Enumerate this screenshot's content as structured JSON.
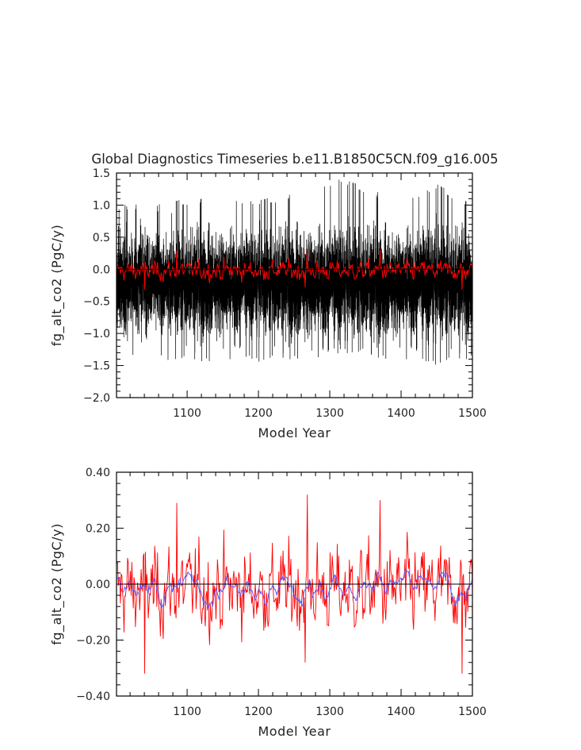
{
  "chart_data": [
    {
      "type": "line",
      "title": "Global Diagnostics Timeseries b.e11.B1850C5CN.f09_g16.005",
      "xlabel": "Model Year",
      "ylabel": "fg_alt_co2 (PgC/y)",
      "xlim": [
        1001,
        1500
      ],
      "ylim": [
        -2.0,
        1.5
      ],
      "xticks": [
        1100,
        1200,
        1300,
        1400,
        1500
      ],
      "xtick_labels": [
        "1100",
        "1200",
        "1300",
        "1400",
        "1500"
      ],
      "yticks": [
        -2.0,
        -1.5,
        -1.0,
        -0.5,
        0.0,
        0.5,
        1.0,
        1.5
      ],
      "ytick_labels": [
        "−2.0",
        "−1.5",
        "−1.0",
        "−0.5",
        "0.0",
        "0.5",
        "1.0",
        "1.5"
      ],
      "grid": false,
      "zero_line": true,
      "series": [
        {
          "color": "#000000",
          "style": "monthly",
          "values_note": "",
          "x_range": [
            1001,
            1500
          ],
          "envelope": [
            [
              1001,
              -1.35,
              1.0
            ],
            [
              1100,
              -1.45,
              1.1
            ],
            [
              1200,
              -1.45,
              1.1
            ],
            [
              1270,
              -1.4,
              1.2
            ],
            [
              1315,
              -1.3,
              1.45
            ],
            [
              1400,
              -1.45,
              1.05
            ],
            [
              1450,
              -1.5,
              1.35
            ],
            [
              1500,
              -1.4,
              1.0
            ]
          ]
        },
        {
          "color": "#ff0000",
          "style": "annual"
        }
      ]
    },
    {
      "type": "line",
      "title": "",
      "xlabel": "Model Year",
      "ylabel": "fg_alt_co2 (PgC/y)",
      "xlim": [
        1001,
        1500
      ],
      "ylim": [
        -0.4,
        0.4
      ],
      "xticks": [
        1100,
        1200,
        1300,
        1400,
        1500
      ],
      "xtick_labels": [
        "1100",
        "1200",
        "1300",
        "1400",
        "1500"
      ],
      "yticks": [
        -0.4,
        -0.2,
        0.0,
        0.2,
        0.4
      ],
      "ytick_labels": [
        "−0.40",
        "−0.20",
        "0.00",
        "0.20",
        "0.40"
      ],
      "grid": false,
      "zero_line": true,
      "series": [
        {
          "color": "#ff0000",
          "style": "annual",
          "peaks": [
            [
              1085,
              0.29
            ],
            [
              1268,
              0.32
            ],
            [
              1370,
              0.3
            ],
            [
              1040,
              -0.32
            ],
            [
              1265,
              -0.28
            ],
            [
              1485,
              -0.32
            ]
          ]
        },
        {
          "color": "#5a5aff",
          "style": "smoothed"
        }
      ]
    }
  ]
}
